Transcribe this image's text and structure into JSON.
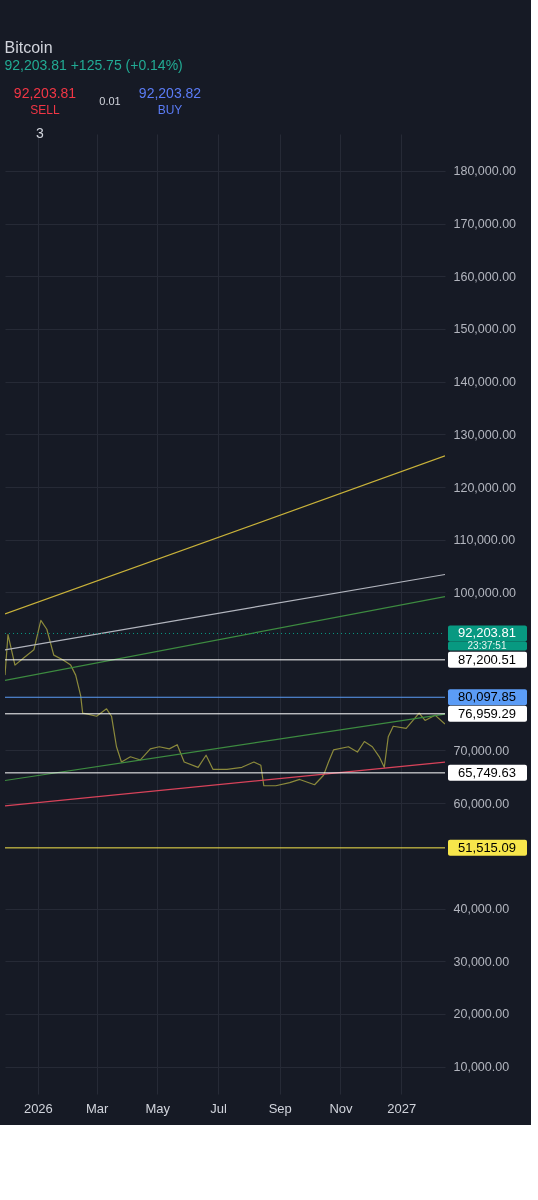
{
  "chart_data": {
    "type": "line",
    "title": "Bitcoin",
    "subtitle": "92,203.81  +125.75 (+0.14%)",
    "annotations": [
      "92,203.81",
      "SELL",
      "0.01",
      "92,203.82",
      "BUY",
      "3",
      "23:37:51"
    ],
    "series": [
      {
        "color": "#8c8a3c",
        "x": [
          "2025-11-29",
          "2025-12-02",
          "2025-12-09",
          "2025-12-18",
          "2025-12-28",
          "2026-01-04",
          "2026-01-10",
          "2026-01-17",
          "2026-01-26",
          "2026-02-03",
          "2026-02-08",
          "2026-02-13",
          "2026-02-15",
          "2026-02-20",
          "2026-03-01",
          "2026-03-11",
          "2026-03-16",
          "2026-03-21",
          "2026-03-26",
          "2026-04-04",
          "2026-04-14",
          "2026-04-24",
          "2026-05-03",
          "2026-05-13",
          "2026-05-21",
          "2026-05-28",
          "2026-06-11",
          "2026-06-19",
          "2026-06-26",
          "2026-07-10",
          "2026-07-25",
          "2026-08-06",
          "2026-08-13",
          "2026-08-16",
          "2026-08-28",
          "2026-09-11",
          "2026-09-21",
          "2026-10-06",
          "2026-10-15",
          "2026-10-20",
          "2026-10-25",
          "2026-11-09",
          "2026-11-18",
          "2026-11-25",
          "2026-12-03",
          "2026-12-10",
          "2026-12-15",
          "2026-12-19",
          "2026-12-24",
          "2027-01-06",
          "2027-01-19",
          "2027-01-25",
          "2027-02-04",
          "2027-02-14"
        ],
        "values": [
          84300,
          92000,
          86200,
          87600,
          89100,
          94700,
          93000,
          88100,
          87200,
          86200,
          84300,
          80400,
          77100,
          76900,
          76500,
          77900,
          76500,
          70700,
          67800,
          68800,
          68200,
          70300,
          70700,
          70300,
          71100,
          67800,
          66800,
          69100,
          66400,
          66400,
          66800,
          67800,
          67200,
          63300,
          63300,
          63900,
          64500,
          63500,
          65300,
          67800,
          70100,
          70700,
          69700,
          71700,
          70700,
          68800,
          66800,
          72600,
          74600,
          74200,
          77100,
          75700,
          76700,
          75000
        ]
      },
      {
        "color": "#c9b23a",
        "x": [
          "2025-11-29",
          "2027-02-14"
        ],
        "values": [
          95900,
          125900
        ]
      },
      {
        "color": "#b2b5be",
        "x": [
          "2025-11-29",
          "2027-02-14"
        ],
        "values": [
          89100,
          103400
        ]
      },
      {
        "color": "#3d8b40",
        "x": [
          "2025-11-29",
          "2027-02-14"
        ],
        "values": [
          83300,
          99200
        ]
      },
      {
        "color": "#3d8b40",
        "x": [
          "2025-11-29",
          "2027-02-14"
        ],
        "values": [
          64300,
          76900
        ]
      },
      {
        "color": "#d8435a",
        "x": [
          "2025-11-29",
          "2027-02-14"
        ],
        "values": [
          59500,
          67800
        ]
      }
    ],
    "ref_lines": [
      {
        "axis": "y",
        "value": 92203.81,
        "label": "92,203.81",
        "color": "#089981",
        "line_style": "dotted"
      },
      {
        "axis": "y",
        "value": 87200.51,
        "label": "87,200.51",
        "color": "#ffffff",
        "line_style": "solid"
      },
      {
        "axis": "y",
        "value": 80097.85,
        "label": "80,097.85",
        "color": "#5b9cf6",
        "line_style": "solid"
      },
      {
        "axis": "y",
        "value": 76959.29,
        "label": "76,959.29",
        "color": "#ffffff",
        "line_style": "solid"
      },
      {
        "axis": "y",
        "value": 65749.63,
        "label": "65,749.63",
        "color": "#ffffff",
        "line_style": "solid"
      },
      {
        "axis": "y",
        "value": 51515.09,
        "label": "51,515.09",
        "color": "#f7e64b",
        "line_style": "solid"
      }
    ],
    "xlim": [
      "2025-11-29",
      "2027-02-14"
    ],
    "xticks": [
      {
        "value": "2026-01-01",
        "label": "2026"
      },
      {
        "value": "2026-03-01",
        "label": "Mar"
      },
      {
        "value": "2026-05-01",
        "label": "May"
      },
      {
        "value": "2026-07-01",
        "label": "Jul"
      },
      {
        "value": "2026-09-01",
        "label": "Sep"
      },
      {
        "value": "2026-11-01",
        "label": "Nov"
      },
      {
        "value": "2027-01-01",
        "label": "2027"
      }
    ],
    "ylim": [
      4800,
      187000
    ],
    "yticks": [
      {
        "value": 10000,
        "label": "10,000.00"
      },
      {
        "value": 20000,
        "label": "20,000.00"
      },
      {
        "value": 30000,
        "label": "30,000.00"
      },
      {
        "value": 40000,
        "label": "40,000.00"
      },
      {
        "value": 60000,
        "label": "60,000.00"
      },
      {
        "value": 70000,
        "label": "70,000.00"
      },
      {
        "value": 100000,
        "label": "100,000.00"
      },
      {
        "value": 110000,
        "label": "110,000.00"
      },
      {
        "value": 120000,
        "label": "120,000.00"
      },
      {
        "value": 130000,
        "label": "130,000.00"
      },
      {
        "value": 140000,
        "label": "140,000.00"
      },
      {
        "value": 150000,
        "label": "150,000.00"
      },
      {
        "value": 160000,
        "label": "160,000.00"
      },
      {
        "value": 170000,
        "label": "170,000.00"
      },
      {
        "value": 180000,
        "label": "180,000.00"
      }
    ],
    "grid": true,
    "marker": "none",
    "line_style": "solid"
  }
}
